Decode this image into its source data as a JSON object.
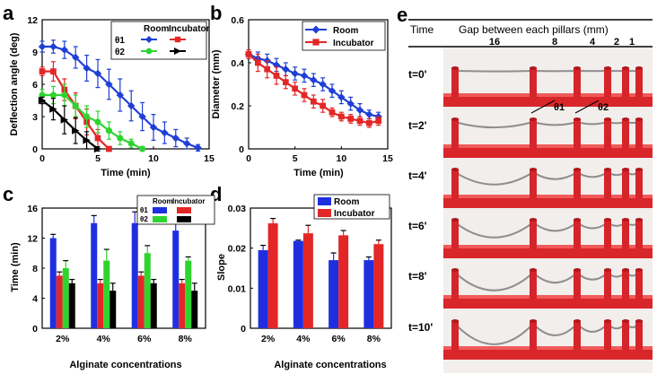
{
  "panels": [
    "a",
    "b",
    "c",
    "d",
    "e"
  ],
  "chart_data": [
    {
      "panel": "a",
      "type": "line",
      "xlabel": "Time  (min)",
      "ylabel": "Deflection angle (deg)",
      "xlim": [
        0,
        15
      ],
      "ylim": [
        0,
        12
      ],
      "xticks": [
        0,
        5,
        10,
        15
      ],
      "yticks": [
        0,
        3,
        6,
        9,
        12
      ],
      "legend": {
        "placement": "top-right",
        "columns": [
          "Room",
          "Incubator"
        ],
        "rows": [
          "θ1",
          "θ2"
        ]
      },
      "series": [
        {
          "name": "θ1 Room",
          "color": "#1f3fd6",
          "marker": "diamond",
          "x": [
            0,
            1,
            2,
            3,
            4,
            5,
            6,
            7,
            8,
            9,
            10,
            11,
            12,
            13,
            14
          ],
          "y": [
            9.5,
            9.5,
            9.2,
            8.5,
            7.5,
            7.0,
            6.0,
            5.0,
            4.0,
            3.0,
            2.0,
            1.5,
            1.0,
            0.5,
            0.1
          ],
          "err": [
            0.5,
            0.6,
            0.8,
            1.0,
            1.2,
            1.3,
            1.4,
            1.5,
            1.4,
            1.3,
            1.2,
            1.0,
            0.8,
            0.5,
            0.3
          ]
        },
        {
          "name": "θ1 Incubator",
          "color": "#e32626",
          "marker": "square",
          "x": [
            0,
            1,
            2,
            3,
            4,
            5,
            6
          ],
          "y": [
            7.2,
            7.2,
            5.5,
            4.0,
            2.5,
            1.0,
            0.0
          ],
          "err": [
            0.4,
            0.9,
            1.0,
            1.2,
            1.2,
            0.8,
            0.2
          ]
        },
        {
          "name": "θ2 Room",
          "color": "#2fd42f",
          "marker": "circle",
          "x": [
            0,
            1,
            2,
            3,
            4,
            5,
            6,
            7,
            8,
            9
          ],
          "y": [
            5.0,
            5.0,
            5.0,
            4.0,
            3.0,
            2.5,
            1.7,
            1.0,
            0.5,
            0.0
          ],
          "err": [
            0.5,
            0.8,
            1.0,
            1.0,
            1.0,
            1.0,
            0.8,
            0.6,
            0.4,
            0.2
          ]
        },
        {
          "name": "θ2 Incubator",
          "color": "#000000",
          "marker": "triangle-right",
          "x": [
            0,
            1,
            2,
            3,
            4,
            5
          ],
          "y": [
            4.5,
            3.7,
            2.7,
            1.7,
            0.8,
            0.0
          ],
          "err": [
            0.3,
            1.0,
            1.3,
            1.2,
            0.8,
            0.2
          ]
        }
      ]
    },
    {
      "panel": "b",
      "type": "line",
      "xlabel": "Time  (min)",
      "ylabel": "Diameter  (mm)",
      "xlim": [
        0,
        15
      ],
      "ylim": [
        0,
        0.6
      ],
      "xticks": [
        0,
        5,
        10,
        15
      ],
      "yticks": [
        0,
        0.2,
        0.4,
        0.6
      ],
      "yticklabels": [
        "0",
        "0.2",
        "0.4",
        "0.6"
      ],
      "legend": {
        "placement": "top-right"
      },
      "series": [
        {
          "name": "Room",
          "color": "#1f3fd6",
          "marker": "diamond",
          "x": [
            0,
            1,
            2,
            3,
            4,
            5,
            6,
            7,
            8,
            9,
            10,
            11,
            12,
            13,
            14
          ],
          "y": [
            0.44,
            0.42,
            0.41,
            0.39,
            0.37,
            0.35,
            0.34,
            0.32,
            0.3,
            0.27,
            0.24,
            0.21,
            0.18,
            0.16,
            0.15
          ],
          "err": [
            0.02,
            0.03,
            0.03,
            0.03,
            0.03,
            0.03,
            0.03,
            0.03,
            0.03,
            0.03,
            0.03,
            0.03,
            0.03,
            0.02,
            0.02
          ]
        },
        {
          "name": "Incubator",
          "color": "#e32626",
          "marker": "square",
          "x": [
            0,
            1,
            2,
            3,
            4,
            5,
            6,
            7,
            8,
            9,
            10,
            11,
            12,
            13,
            14
          ],
          "y": [
            0.44,
            0.4,
            0.37,
            0.34,
            0.31,
            0.28,
            0.25,
            0.22,
            0.2,
            0.17,
            0.15,
            0.14,
            0.13,
            0.12,
            0.13
          ],
          "err": [
            0.02,
            0.04,
            0.04,
            0.04,
            0.03,
            0.03,
            0.03,
            0.03,
            0.03,
            0.02,
            0.02,
            0.02,
            0.02,
            0.02,
            0.02
          ]
        }
      ]
    },
    {
      "panel": "c",
      "type": "bar",
      "xlabel": "Alginate concentrations",
      "ylabel": "Time  (min)",
      "categories": [
        "2%",
        "4%",
        "6%",
        "8%"
      ],
      "ylim": [
        0,
        16
      ],
      "yticks": [
        0,
        4,
        8,
        12,
        16
      ],
      "legend": {
        "placement": "top-right",
        "columns": [
          "Room",
          "Incubator"
        ],
        "rows": [
          "θ1",
          "θ2"
        ]
      },
      "series": [
        {
          "name": "θ1 Room",
          "color": "#1f2fe0",
          "values": [
            12,
            14,
            14,
            13
          ],
          "err": [
            0.5,
            1.0,
            1.5,
            1.0
          ]
        },
        {
          "name": "θ1 Incubator",
          "color": "#e32626",
          "values": [
            7,
            6,
            7,
            6
          ],
          "err": [
            0.5,
            0.5,
            0.5,
            0.5
          ]
        },
        {
          "name": "θ2 Room",
          "color": "#2fd42f",
          "values": [
            8,
            9,
            10,
            9
          ],
          "err": [
            1.0,
            1.5,
            1.0,
            0.5
          ]
        },
        {
          "name": "θ2 Incubator",
          "color": "#000000",
          "values": [
            6,
            5,
            6,
            5
          ],
          "err": [
            0.5,
            1.0,
            0.5,
            1.0
          ]
        }
      ]
    },
    {
      "panel": "d",
      "type": "bar",
      "xlabel": "Alginate concentrations",
      "ylabel": "Slope",
      "categories": [
        "2%",
        "4%",
        "6%",
        "8%"
      ],
      "ylim": [
        0,
        0.03
      ],
      "yticks": [
        0,
        0.01,
        0.02,
        0.03
      ],
      "yticklabels": [
        "0",
        "0.01",
        "0.02",
        "0.03"
      ],
      "legend": {
        "placement": "top-right"
      },
      "series": [
        {
          "name": "Room",
          "color": "#1f2fe0",
          "values": [
            0.0195,
            0.0218,
            0.017,
            0.017
          ],
          "err": [
            0.0012,
            0.0002,
            0.0018,
            0.0008
          ]
        },
        {
          "name": "Incubator",
          "color": "#e32626",
          "values": [
            0.0262,
            0.0237,
            0.0232,
            0.021
          ],
          "err": [
            0.0012,
            0.002,
            0.0012,
            0.001
          ]
        }
      ]
    }
  ],
  "panel_e": {
    "time_header": "Time",
    "gap_header": "Gap between each pillars (mm)",
    "gaps": [
      "16",
      "8",
      "4",
      "2",
      "1"
    ],
    "angle_labels": [
      "θ1",
      "θ2"
    ],
    "rows": [
      "t=0'",
      "t=2'",
      "t=4'",
      "t=6'",
      "t=8'",
      "t=10'"
    ],
    "sag": [
      0.02,
      0.2,
      0.45,
      0.55,
      0.65,
      0.75
    ]
  }
}
